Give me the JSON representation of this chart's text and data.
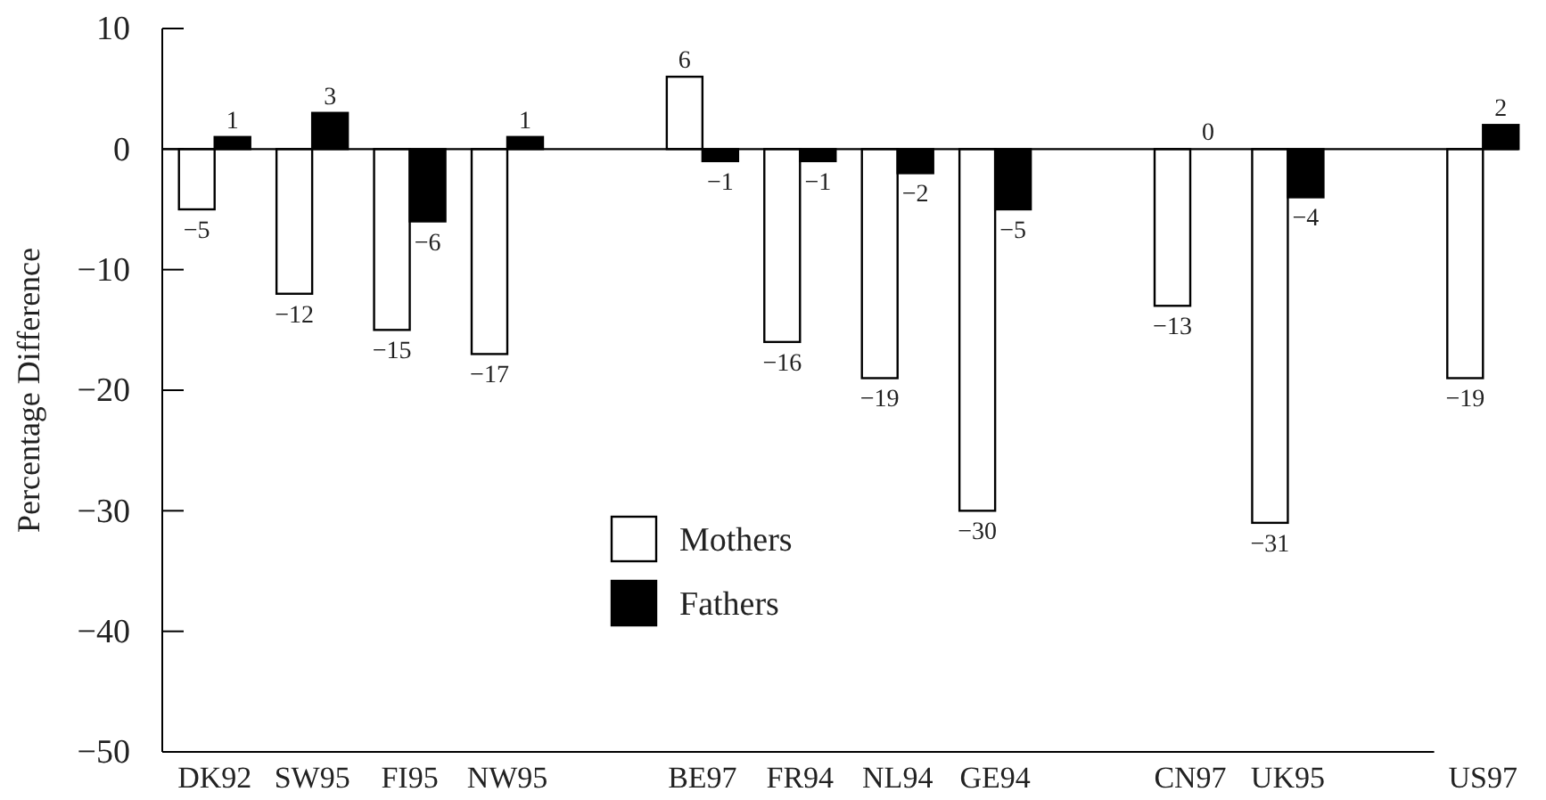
{
  "chart_data": {
    "type": "bar",
    "ylabel": "Percentage Difference",
    "categories": [
      "DK92",
      "SW95",
      "FI95",
      "NW95",
      null,
      "BE97",
      "FR94",
      "NL94",
      "GE94",
      null,
      "CN97",
      "UK95",
      null,
      "US97"
    ],
    "series": [
      {
        "name": "Mothers",
        "color": "#ffffff",
        "values": [
          -5,
          -12,
          -15,
          -17,
          null,
          6,
          -16,
          -19,
          -30,
          null,
          -13,
          -31,
          null,
          -19
        ]
      },
      {
        "name": "Fathers",
        "color": "#000000",
        "values": [
          1,
          3,
          -6,
          1,
          null,
          -1,
          -1,
          -2,
          -5,
          null,
          0,
          -4,
          null,
          2
        ]
      }
    ],
    "ylim": [
      -50,
      10
    ],
    "yticks": [
      -50,
      -40,
      -30,
      -20,
      -10,
      0,
      10
    ],
    "data_labels": true,
    "legend": "bottom",
    "ref_lines": [
      {
        "axis": "y",
        "value": 0
      }
    ]
  }
}
